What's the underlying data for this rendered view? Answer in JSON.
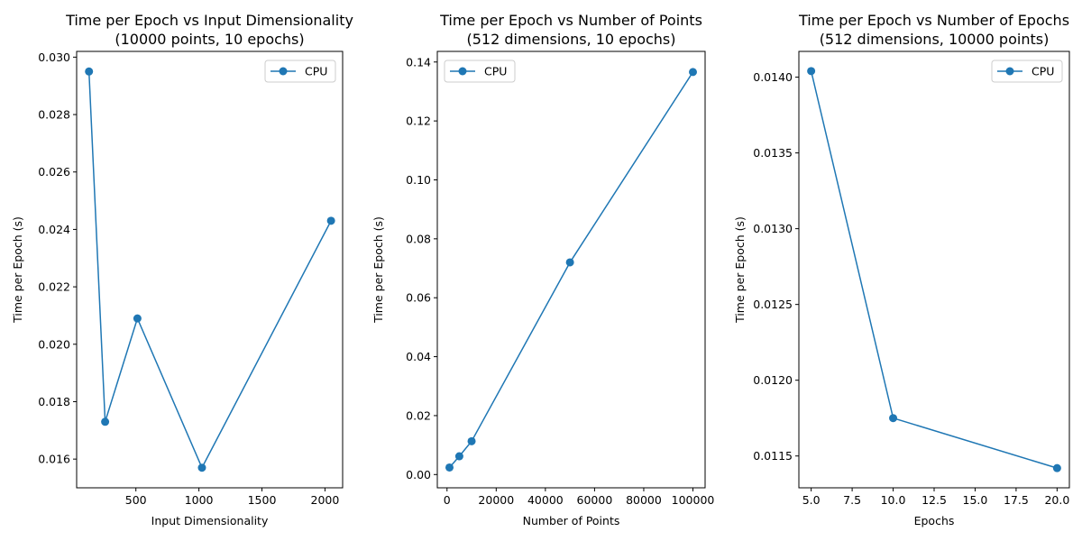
{
  "chart_data": [
    {
      "type": "line",
      "title_lines": [
        "Time per Epoch vs Input Dimensionality",
        "(10000 points, 10 epochs)"
      ],
      "xlabel": "Input Dimensionality",
      "ylabel": "Time per Epoch (s)",
      "xlim": [
        30,
        2140
      ],
      "ylim": [
        0.015,
        0.0302
      ],
      "xticks": [
        500,
        1000,
        1500,
        2000
      ],
      "xtick_labels": [
        "500",
        "1000",
        "1500",
        "2000"
      ],
      "yticks": [
        0.016,
        0.018,
        0.02,
        0.022,
        0.024,
        0.026,
        0.028,
        0.03
      ],
      "ytick_labels": [
        "0.016",
        "0.018",
        "0.020",
        "0.022",
        "0.024",
        "0.026",
        "0.028",
        "0.030"
      ],
      "legend_position": "top-right",
      "series": [
        {
          "name": "CPU",
          "x": [
            128,
            256,
            512,
            1024,
            2048
          ],
          "y": [
            0.0295,
            0.0173,
            0.0209,
            0.0157,
            0.0243
          ]
        }
      ]
    },
    {
      "type": "line",
      "title_lines": [
        "Time per Epoch vs Number of Points",
        "(512 dimensions, 10 epochs)"
      ],
      "xlabel": "Number of Points",
      "ylabel": "Time per Epoch (s)",
      "xlim": [
        -3950,
        104950
      ],
      "ylim": [
        -0.0045,
        0.1436
      ],
      "xticks": [
        0,
        20000,
        40000,
        60000,
        80000,
        100000
      ],
      "xtick_labels": [
        "0",
        "20000",
        "40000",
        "60000",
        "80000",
        "100000"
      ],
      "yticks": [
        0.0,
        0.02,
        0.04,
        0.06,
        0.08,
        0.1,
        0.12,
        0.14
      ],
      "ytick_labels": [
        "0.00",
        "0.02",
        "0.04",
        "0.06",
        "0.08",
        "0.10",
        "0.12",
        "0.14"
      ],
      "legend_position": "top-left",
      "series": [
        {
          "name": "CPU",
          "x": [
            1000,
            5000,
            10000,
            50000,
            100000
          ],
          "y": [
            0.0024,
            0.0062,
            0.0113,
            0.072,
            0.1366
          ]
        }
      ]
    },
    {
      "type": "line",
      "title_lines": [
        "Time per Epoch vs Number of Epochs",
        "(512 dimensions, 10000 points)"
      ],
      "xlabel": "Epochs",
      "ylabel": "Time per Epoch (s)",
      "xlim": [
        4.25,
        20.75
      ],
      "ylim": [
        0.01129,
        0.01417
      ],
      "xticks": [
        5.0,
        7.5,
        10.0,
        12.5,
        15.0,
        17.5,
        20.0
      ],
      "xtick_labels": [
        "5.0",
        "7.5",
        "10.0",
        "12.5",
        "15.0",
        "17.5",
        "20.0"
      ],
      "yticks": [
        0.0115,
        0.012,
        0.0125,
        0.013,
        0.0135,
        0.014
      ],
      "ytick_labels": [
        "0.0115",
        "0.0120",
        "0.0125",
        "0.0130",
        "0.0135",
        "0.0140"
      ],
      "legend_position": "top-right",
      "series": [
        {
          "name": "CPU",
          "x": [
            5,
            10,
            20
          ],
          "y": [
            0.01404,
            0.01175,
            0.01142
          ]
        }
      ]
    }
  ],
  "colors": {
    "line": "#1f77b4"
  }
}
